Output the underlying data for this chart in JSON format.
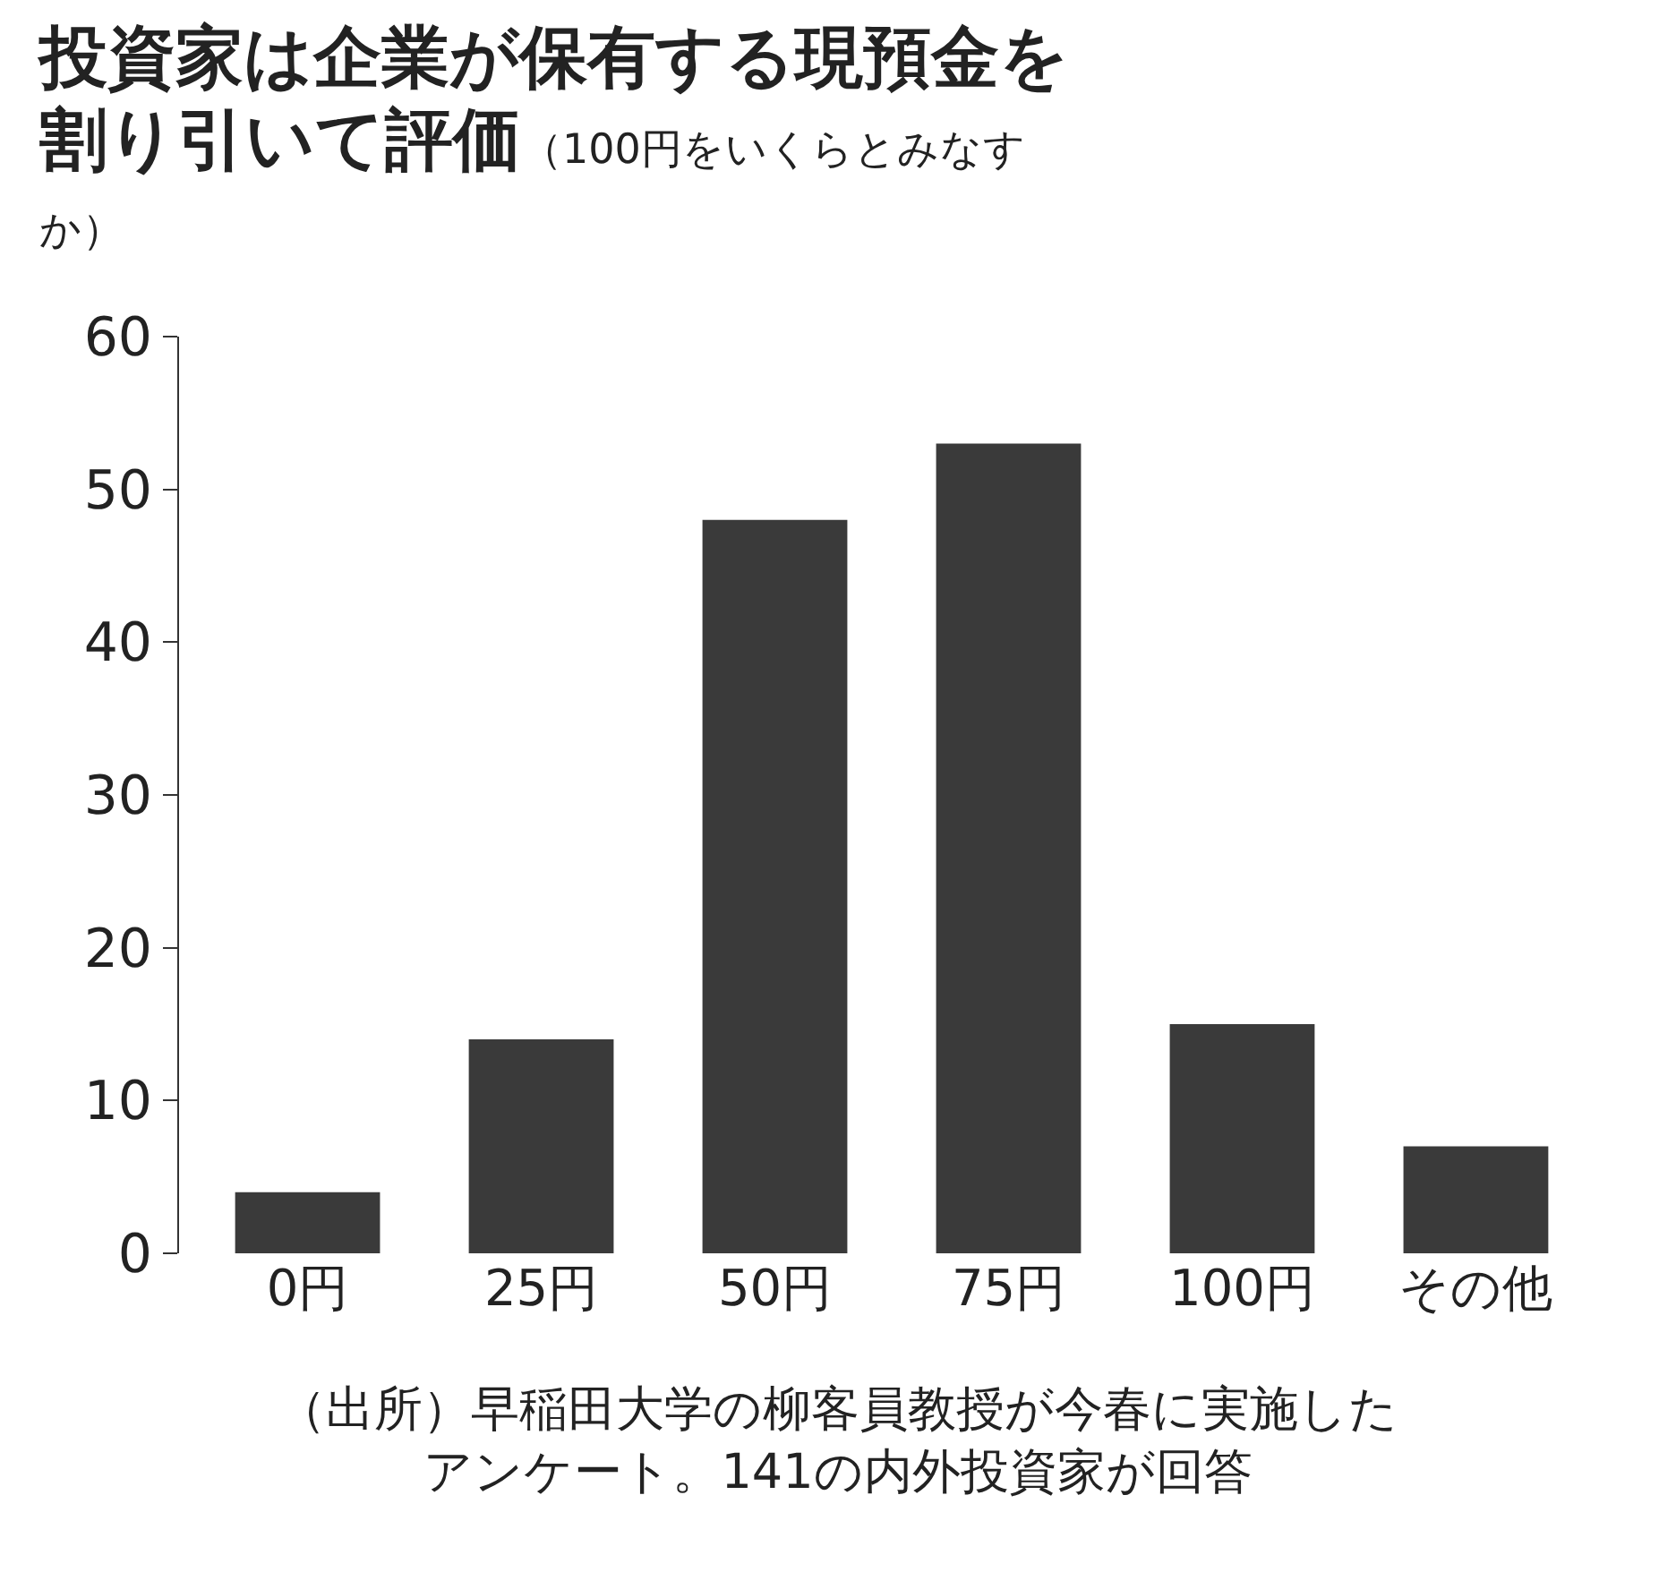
{
  "chart_data": {
    "type": "bar",
    "title": "投資家は企業が保有する現預金を割り引いて評価",
    "subtitle": "（100円をいくらとみなすか）",
    "categories": [
      "0円",
      "25円",
      "50円",
      "75円",
      "100円",
      "その他"
    ],
    "values": [
      4,
      14,
      48,
      53,
      15,
      7
    ],
    "color": "#3a3a3a",
    "ylim": [
      0,
      60
    ],
    "yticks": [
      0,
      10,
      20,
      30,
      40,
      50,
      60
    ],
    "grid": false,
    "annotations": [
      "（出所）早稲田大学の柳客員教授が今春に実施したアンケート。141の内外投資家が回答"
    ]
  }
}
